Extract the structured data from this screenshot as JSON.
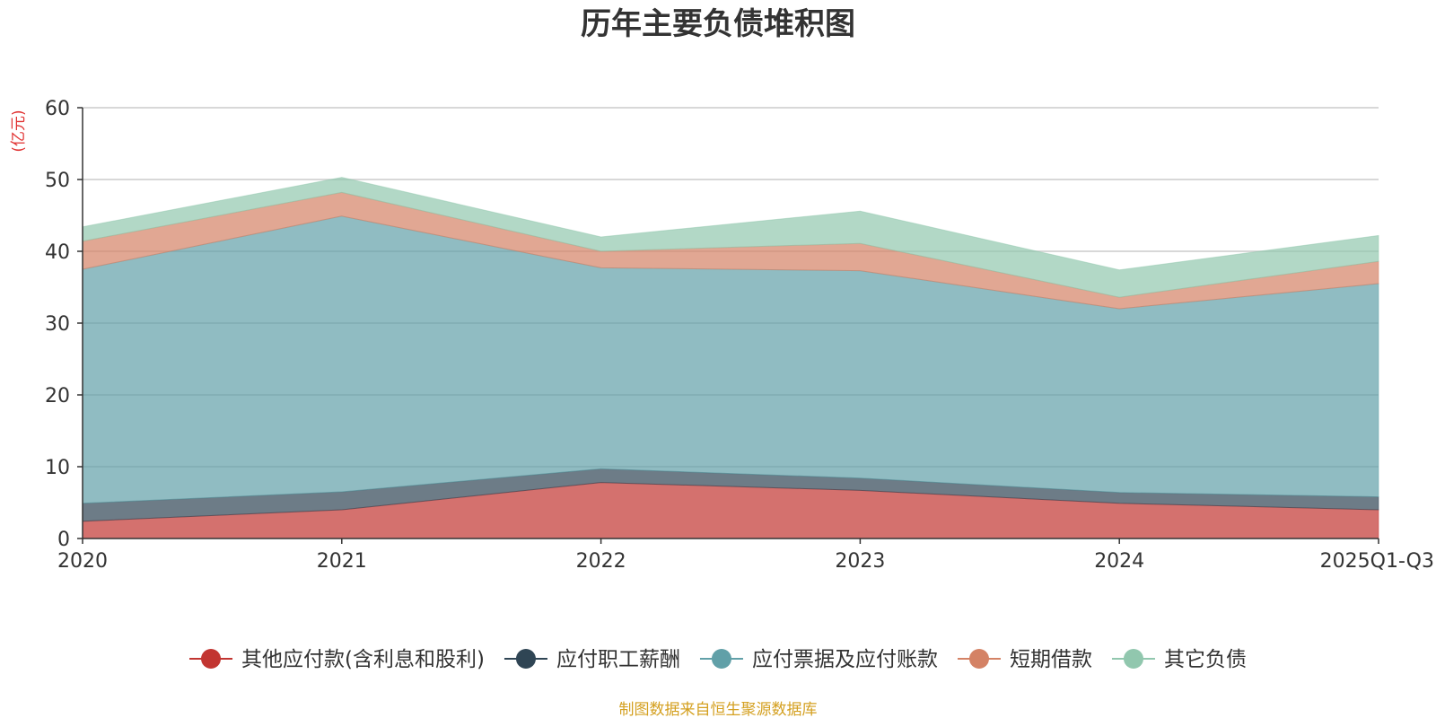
{
  "chart_data": {
    "type": "area",
    "stacked": true,
    "title": "历年主要负债堆积图",
    "ylabel": "(亿元)",
    "xlabel": "",
    "ylim": [
      0,
      60
    ],
    "yticks": [
      0,
      10,
      20,
      30,
      40,
      50,
      60
    ],
    "categories": [
      "2020",
      "2021",
      "2022",
      "2023",
      "2024",
      "2025Q1-Q3"
    ],
    "grid": true,
    "legend_position": "bottom",
    "series": [
      {
        "name": "其他应付款(含利息和股利)",
        "color": "#c23531",
        "values": [
          2.4,
          4.0,
          7.8,
          6.7,
          4.9,
          4.0
        ]
      },
      {
        "name": "应付职工薪酬",
        "color": "#2f4554",
        "values": [
          2.5,
          2.5,
          1.9,
          1.7,
          1.5,
          1.8
        ]
      },
      {
        "name": "应付票据及应付账款",
        "color": "#61a0a8",
        "values": [
          32.6,
          38.4,
          28.0,
          28.9,
          25.6,
          29.7
        ]
      },
      {
        "name": "短期借款",
        "color": "#d48265",
        "values": [
          3.9,
          3.3,
          2.3,
          3.8,
          1.6,
          3.1
        ]
      },
      {
        "name": "其它负债",
        "color": "#91c7ae",
        "values": [
          2.0,
          2.1,
          2.0,
          4.5,
          3.8,
          3.6
        ]
      }
    ],
    "source": "制图数据来自恒生聚源数据库",
    "colors": {
      "ylabel": "#e03030",
      "source": "#d4a020",
      "grid": "#cccccc",
      "axis": "#333333"
    }
  }
}
